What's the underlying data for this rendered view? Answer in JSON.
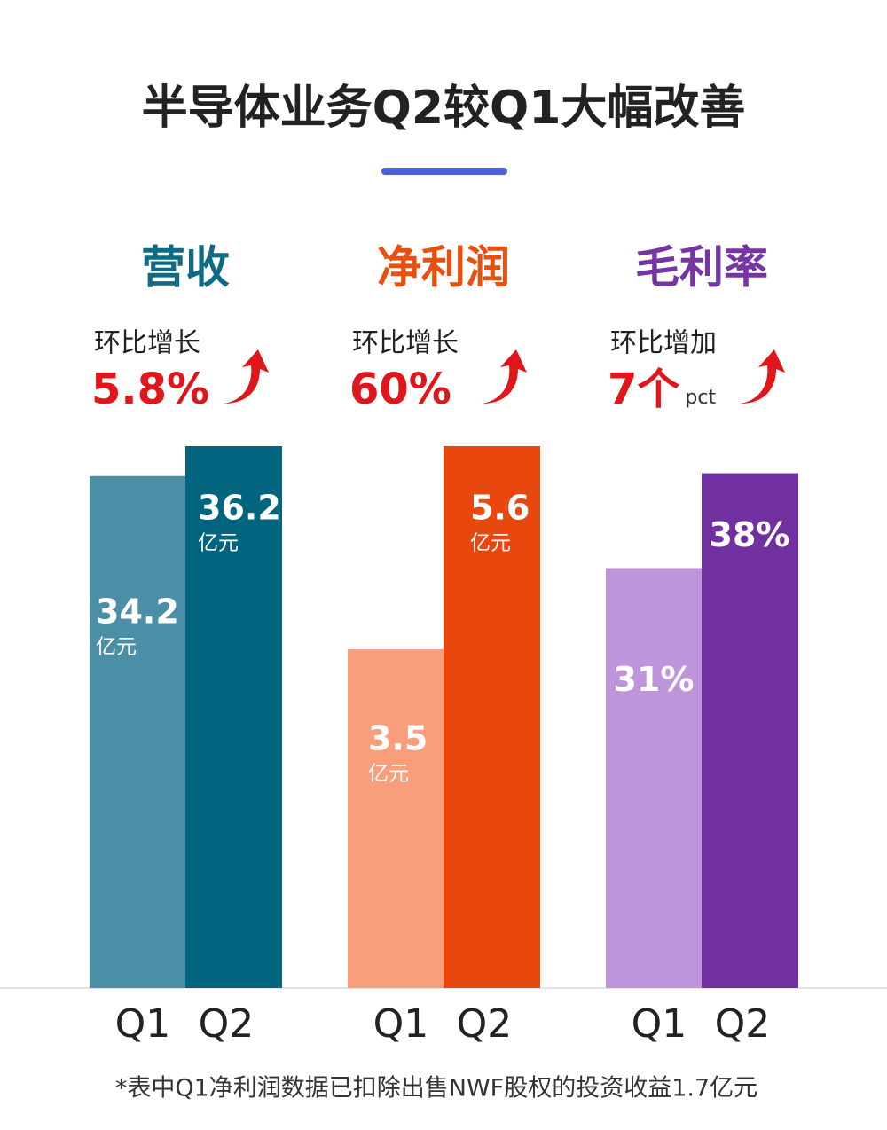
{
  "title": "半导体业务Q2较Q1大幅改善",
  "footnote": "*表中Q1净利润数据已扣除出售NWF股权的投资收益1.7亿元",
  "chart_data": [
    {
      "type": "bar",
      "title": "营收",
      "title_color": "#0e6b83",
      "annotation": {
        "text": "环比增长",
        "change": "5.8%"
      },
      "categories": [
        "Q1",
        "Q2"
      ],
      "values": [
        34.2,
        36.2
      ],
      "unit": "亿元",
      "colors": [
        "#4a8fa6",
        "#02657f"
      ],
      "ylim": [
        0,
        36.2
      ]
    },
    {
      "type": "bar",
      "title": "净利润",
      "title_color": "#e8500f",
      "annotation": {
        "text": "环比增长",
        "change": "60%"
      },
      "categories": [
        "Q1",
        "Q2"
      ],
      "values": [
        3.5,
        5.6
      ],
      "unit": "亿元",
      "colors": [
        "#f89e7b",
        "#e8470e"
      ],
      "ylim": [
        0,
        5.6
      ]
    },
    {
      "type": "bar",
      "title": "毛利率",
      "title_color": "#7535a5",
      "annotation": {
        "text": "环比增加",
        "change": "7个",
        "suffix": "pct"
      },
      "categories": [
        "Q1",
        "Q2"
      ],
      "values": [
        31,
        38
      ],
      "value_labels": [
        "31%",
        "38%"
      ],
      "colors": [
        "#be95db",
        "#7030a0"
      ],
      "ylim": [
        0,
        40
      ]
    }
  ]
}
